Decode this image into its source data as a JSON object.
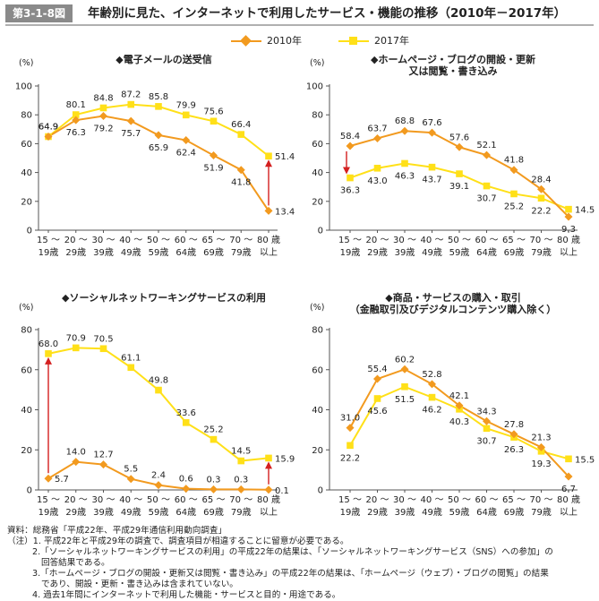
{
  "figure": {
    "label": "第3-1-8図",
    "title": "年齢別に見た、インターネットで利用したサービス・機能の推移（2010年－2017年）"
  },
  "legend": [
    {
      "name": "2010年",
      "color": "#f29a1f"
    },
    {
      "name": "2017年",
      "color": "#ffe018"
    }
  ],
  "colors": {
    "arrow": "#d42020",
    "axis": "#555555"
  },
  "chart_data": [
    {
      "type": "line",
      "title_lines": [
        "◆電子メールの送受信"
      ],
      "ylabel": "(%)",
      "ylim": [
        0,
        100
      ],
      "yticks": [
        0,
        20,
        40,
        60,
        80,
        100
      ],
      "categories": [
        [
          "15 ～",
          "19歳"
        ],
        [
          "20 ～",
          "29歳"
        ],
        [
          "30 ～",
          "39歳"
        ],
        [
          "40 ～",
          "49歳"
        ],
        [
          "50 ～",
          "59歳"
        ],
        [
          "60 ～",
          "64歳"
        ],
        [
          "65 ～",
          "69歳"
        ],
        [
          "70 ～",
          "79歳"
        ],
        [
          "80 歳",
          "以上"
        ]
      ],
      "series": [
        {
          "name": "2010年",
          "values": [
            64.9,
            76.3,
            79.2,
            75.7,
            65.9,
            62.4,
            51.9,
            41.8,
            13.4
          ]
        },
        {
          "name": "2017年",
          "values": [
            64.9,
            80.1,
            84.8,
            87.2,
            85.8,
            79.9,
            75.6,
            66.4,
            51.4
          ]
        }
      ],
      "arrows": [
        {
          "index": 8,
          "from": 13.4,
          "to": 51.4
        }
      ]
    },
    {
      "type": "line",
      "title_lines": [
        "◆ホームページ・ブログの開設・更新",
        "又は閲覧・書き込み"
      ],
      "ylabel": "(%)",
      "ylim": [
        0,
        100
      ],
      "yticks": [
        0,
        20,
        40,
        60,
        80,
        100
      ],
      "categories": [
        [
          "15 ～",
          "19歳"
        ],
        [
          "20 ～",
          "29歳"
        ],
        [
          "30 ～",
          "39歳"
        ],
        [
          "40 ～",
          "49歳"
        ],
        [
          "50 ～",
          "59歳"
        ],
        [
          "60 ～",
          "64歳"
        ],
        [
          "65 ～",
          "69歳"
        ],
        [
          "70 ～",
          "79歳"
        ],
        [
          "80 歳",
          "以上"
        ]
      ],
      "series": [
        {
          "name": "2010年",
          "values": [
            58.4,
            63.7,
            68.8,
            67.6,
            57.6,
            52.1,
            41.8,
            28.4,
            9.3
          ]
        },
        {
          "name": "2017年",
          "values": [
            36.3,
            43.0,
            46.3,
            43.7,
            39.1,
            30.7,
            25.2,
            22.2,
            14.5
          ]
        }
      ],
      "arrows": [
        {
          "index": 0,
          "from": 58.4,
          "to": 36.3
        }
      ]
    },
    {
      "type": "line",
      "title_lines": [
        "◆ソーシャルネットワーキングサービスの利用"
      ],
      "ylabel": "(%)",
      "ylim": [
        0,
        80
      ],
      "yticks": [
        0,
        20,
        40,
        60,
        80
      ],
      "categories": [
        [
          "15 ～",
          "19歳"
        ],
        [
          "20 ～",
          "29歳"
        ],
        [
          "30 ～",
          "39歳"
        ],
        [
          "40 ～",
          "49歳"
        ],
        [
          "50 ～",
          "59歳"
        ],
        [
          "60 ～",
          "64歳"
        ],
        [
          "65 ～",
          "69歳"
        ],
        [
          "70 ～",
          "79歳"
        ],
        [
          "80 歳",
          "以上"
        ]
      ],
      "series": [
        {
          "name": "2010年",
          "values": [
            5.7,
            14.0,
            12.7,
            5.5,
            2.4,
            0.6,
            0.3,
            0.3,
            0.1
          ]
        },
        {
          "name": "2017年",
          "values": [
            68.0,
            70.9,
            70.5,
            61.1,
            49.8,
            33.6,
            25.2,
            14.5,
            15.9
          ]
        }
      ],
      "arrows": [
        {
          "index": 0,
          "from": 5.7,
          "to": 68.0
        },
        {
          "index": 8,
          "from": 0.1,
          "to": 15.9
        }
      ]
    },
    {
      "type": "line",
      "title_lines": [
        "◆商品・サービスの購入・取引",
        "（金融取引及びデジタルコンテンツ購入除く）"
      ],
      "ylabel": "(%)",
      "ylim": [
        0,
        80
      ],
      "yticks": [
        0,
        20,
        40,
        60,
        80
      ],
      "categories": [
        [
          "15 ～",
          "19歳"
        ],
        [
          "20 ～",
          "29歳"
        ],
        [
          "30 ～",
          "39歳"
        ],
        [
          "40 ～",
          "49歳"
        ],
        [
          "50 ～",
          "59歳"
        ],
        [
          "60 ～",
          "64歳"
        ],
        [
          "65 ～",
          "69歳"
        ],
        [
          "70 ～",
          "79歳"
        ],
        [
          "80 歳",
          "以上"
        ]
      ],
      "series": [
        {
          "name": "2010年",
          "values": [
            31.0,
            55.4,
            60.2,
            52.8,
            42.1,
            34.3,
            27.8,
            21.3,
            6.7
          ]
        },
        {
          "name": "2017年",
          "values": [
            22.2,
            45.6,
            51.5,
            46.2,
            40.3,
            30.7,
            26.3,
            19.3,
            15.5
          ]
        }
      ],
      "arrows": []
    }
  ],
  "notes": [
    "資料：総務省「平成22年、平成29年通信利用動向調査」",
    "（注）1. 平成22年と平成29年の調査で、調査項目が相違することに留意が必要である。",
    "2.「ソーシャルネットワーキングサービスの利用」の平成22年の結果は、「ソーシャルネットワーキングサービス（SNS）への参加」の",
    "回答結果である。",
    "3.「ホームページ・ブログの開設・更新又は閲覧・書き込み」の平成22年の結果は、「ホームページ（ウェブ）・ブログの閲覧」の結果",
    "であり、開設・更新・書き込みは含まれていない。",
    "4. 過去1年間にインターネットで利用した機能・サービスと目的・用途である。"
  ]
}
